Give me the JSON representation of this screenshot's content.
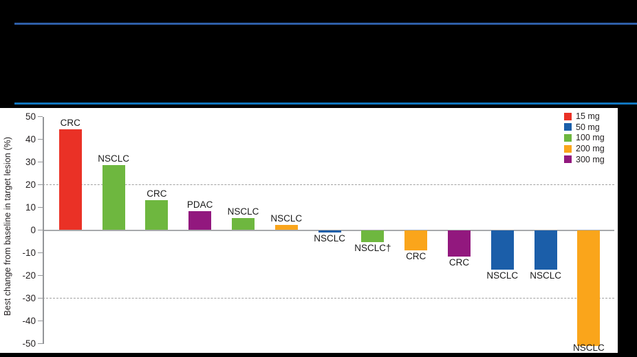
{
  "page": {
    "top_rule_color": "#2E5EA8",
    "bottom_rule_color": "#1076BF",
    "panel_bg": "#FFFFFF",
    "backdrop": "#000000"
  },
  "chart_data": {
    "type": "bar",
    "title": "",
    "ylabel": "Best change from baseline in target lesion (%)",
    "xlabel": "",
    "ylim": [
      -50,
      50
    ],
    "yticks": [
      50,
      40,
      30,
      20,
      10,
      0,
      -10,
      -20,
      -30,
      -40,
      -50
    ],
    "reference_lines": [
      20,
      -30
    ],
    "grid": "dashed-reference-only",
    "legend": {
      "position": "top-right",
      "entries": [
        {
          "label": "15 mg",
          "color": "#EA3126"
        },
        {
          "label": "50 mg",
          "color": "#1B5EA9"
        },
        {
          "label": "100 mg",
          "color": "#6EB73F"
        },
        {
          "label": "200 mg",
          "color": "#FAA51B"
        },
        {
          "label": "300 mg",
          "color": "#92187E"
        }
      ]
    },
    "bars": [
      {
        "label": "CRC",
        "dose": "15 mg",
        "value": 44.5
      },
      {
        "label": "NSCLC",
        "dose": "100 mg",
        "value": 28.5
      },
      {
        "label": "CRC",
        "dose": "100 mg",
        "value": 13.3
      },
      {
        "label": "PDAC",
        "dose": "300 mg",
        "value": 8.2
      },
      {
        "label": "NSCLC",
        "dose": "100 mg",
        "value": 5.2
      },
      {
        "label": "NSCLC",
        "dose": "200 mg",
        "value": 2.4
      },
      {
        "label": "NSCLC",
        "dose": "50 mg",
        "value": -1.2
      },
      {
        "label": "NSCLC†",
        "dose": "100 mg",
        "value": -5.3
      },
      {
        "label": "CRC",
        "dose": "200 mg",
        "value": -8.8
      },
      {
        "label": "CRC",
        "dose": "300 mg",
        "value": -11.8
      },
      {
        "label": "NSCLC",
        "dose": "50 mg",
        "value": -17.3
      },
      {
        "label": "NSCLC",
        "dose": "50 mg",
        "value": -17.5
      },
      {
        "label": "NSCLC",
        "dose": "200 mg",
        "value": -51
      }
    ]
  }
}
